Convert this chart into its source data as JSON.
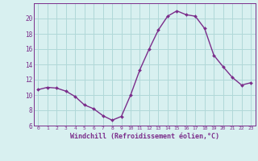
{
  "x": [
    0,
    1,
    2,
    3,
    4,
    5,
    6,
    7,
    8,
    9,
    10,
    11,
    12,
    13,
    14,
    15,
    16,
    17,
    18,
    19,
    20,
    21,
    22,
    23
  ],
  "y": [
    10.7,
    11.0,
    10.9,
    10.5,
    9.8,
    8.7,
    8.2,
    7.3,
    6.7,
    7.2,
    10.0,
    13.3,
    16.0,
    18.5,
    20.3,
    21.0,
    20.5,
    20.3,
    18.7,
    15.2,
    13.7,
    12.3,
    11.3,
    11.6
  ],
  "line_color": "#7b2d8b",
  "marker": "D",
  "marker_size": 2.0,
  "line_width": 1.0,
  "bg_color": "#d8f0f0",
  "grid_color": "#b0d8d8",
  "xlabel": "Windchill (Refroidissement éolien,°C)",
  "xlim": [
    -0.5,
    23.5
  ],
  "ylim": [
    6,
    22
  ],
  "yticks": [
    6,
    8,
    10,
    12,
    14,
    16,
    18,
    20
  ],
  "xticks": [
    0,
    1,
    2,
    3,
    4,
    5,
    6,
    7,
    8,
    9,
    10,
    11,
    12,
    13,
    14,
    15,
    16,
    17,
    18,
    19,
    20,
    21,
    22,
    23
  ],
  "tick_color": "#7b2d8b",
  "label_color": "#7b2d8b"
}
